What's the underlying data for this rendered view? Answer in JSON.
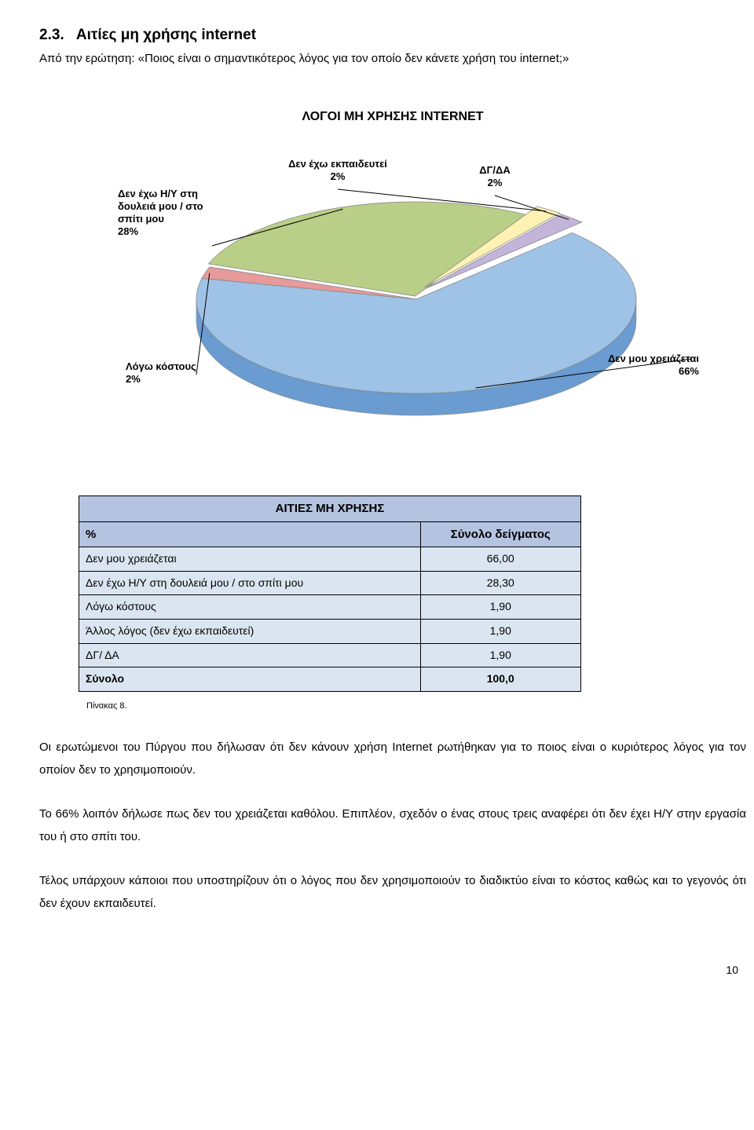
{
  "heading": {
    "number": "2.3.",
    "title": "Αιτίες μη χρήσης internet"
  },
  "question": {
    "prefix": "Από την ερώτηση:",
    "text": "«Ποιος είναι ο σημαντικότερος λόγος για τον οποίο δεν κάνετε χρήση του internet;»"
  },
  "chart": {
    "type": "pie-3d",
    "title": "ΛΟΓΟΙ ΜΗ ΧΡΗΣΗΣ INTERNET",
    "background_color": "#ffffff",
    "slice_border_color": "#888888",
    "label_fontsize": 13,
    "label_color": "#000000",
    "label_font_weight": "bold",
    "slices": [
      {
        "label": "Δεν έχω Η/Υ στη δουλειά μου / στο σπίτι μου",
        "pct_text": "28%",
        "value": 28,
        "color": "#b9cf87",
        "side_color": "#6f8a3a"
      },
      {
        "label": "Δεν έχω εκπαιδευτεί",
        "pct_text": "2%",
        "value": 2,
        "color": "#fff2b3",
        "side_color": "#cccc66"
      },
      {
        "label": "ΔΓ/ΔΑ",
        "pct_text": "2%",
        "value": 2,
        "color": "#c3b5d9",
        "side_color": "#9b8cb5"
      },
      {
        "label": "Δεν μου χρειάζεται",
        "pct_text": "66%",
        "value": 66,
        "color": "#9ec3e6",
        "side_color": "#6a9bd1"
      },
      {
        "label": "Λόγω κόστους",
        "pct_text": "2%",
        "value": 2,
        "color": "#e69a9a",
        "side_color": "#b06a6a"
      }
    ],
    "leader_line_color": "#000000"
  },
  "table": {
    "title": "ΑΙΤΙΕΣ ΜΗ ΧΡΗΣΗΣ",
    "col1_header": "%",
    "col2_header": "Σύνολο δείγματος",
    "rows": [
      {
        "label": "Δεν μου χρειάζεται",
        "value": "66,00"
      },
      {
        "label": "Δεν έχω Η/Υ στη δουλειά μου / στο σπίτι μου",
        "value": "28,30"
      },
      {
        "label": "Λόγω κόστους",
        "value": "1,90"
      },
      {
        "label": "Άλλος λόγος (δεν έχω εκπαιδευτεί)",
        "value": "1,90"
      },
      {
        "label": "ΔΓ/ ΔΑ",
        "value": "1,90"
      }
    ],
    "total_row": {
      "label": "Σύνολο",
      "value": "100,0"
    },
    "caption": "Πίνακας 8.",
    "header_bg": "#b4c3e0",
    "row_bg": "#dbe5f1",
    "border_color": "#000000"
  },
  "paragraphs": [
    "Οι ερωτώμενοι του Πύργου που δήλωσαν ότι δεν κάνουν χρήση Internet ρωτήθηκαν για το ποιος είναι ο κυριότερος λόγος για τον οποίον δεν το χρησιμοποιούν.",
    "Το 66% λοιπόν δήλωσε πως δεν του χρειάζεται καθόλου. Επιπλέον, σχεδόν ο ένας στους τρεις αναφέρει ότι δεν έχει Η/Υ στην εργασία του ή στο σπίτι του.",
    "Τέλος υπάρχουν κάποιοι που υποστηρίζουν ότι ο λόγος που δεν χρησιμοποιούν το διαδικτύο είναι το κόστος καθώς και το γεγονός ότι δεν έχουν εκπαιδευτεί."
  ],
  "page_number": "10"
}
